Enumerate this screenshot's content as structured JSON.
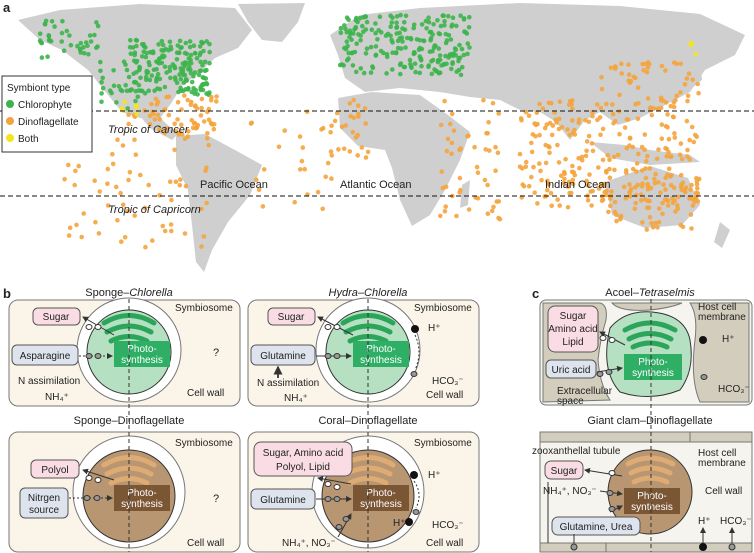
{
  "panel_labels": {
    "a": "a",
    "b": "b",
    "c": "c"
  },
  "map": {
    "legend_title": "Symbiont type",
    "legend": [
      {
        "label": "Chlorophyte",
        "color": "#3cb44b"
      },
      {
        "label": "Dinoflagellate",
        "color": "#f4a43c"
      },
      {
        "label": "Both",
        "color": "#f2e51c"
      }
    ],
    "tropic_cancer": "Tropic of Cancer",
    "tropic_capricorn": "Tropic of Capricorn",
    "oceans": [
      "Pacific Ocean",
      "Atlantic Ocean",
      "Indian Ocean"
    ],
    "land_color": "#cfcfcf"
  },
  "b": {
    "p1": {
      "title": "Sponge–",
      "title_it": "Chlorella",
      "symbiosome": "Symbiosome",
      "cell_wall": "Cell wall",
      "export": "Sugar",
      "import": "Asparagine",
      "photo1": "Photo-",
      "photo2": "synthesis",
      "n_assim": "N assimilation",
      "nh4": "NH₄⁺",
      "unknown": "?"
    },
    "p2": {
      "title_it": "Hydra",
      "title": "–",
      "title_it2": "Chlorella",
      "symbiosome": "Symbiosome",
      "cell_wall": "Cell wall",
      "export": "Sugar",
      "import": "Glutamine",
      "photo1": "Photo-",
      "photo2": "synthesis",
      "n_assim": "N assimilation",
      "nh4": "NH₄⁺",
      "h": "H⁺",
      "hco3": "HCO₃⁻"
    },
    "p3": {
      "title": "Sponge–Dinoflagellate",
      "symbiosome": "Symbiosome",
      "cell_wall": "Cell wall",
      "export": "Polyol",
      "import1": "Nitrgen",
      "import2": "source",
      "photo1": "Photo-",
      "photo2": "synthesis",
      "unknown": "?"
    },
    "p4": {
      "title": "Coral–Dinoflagellate",
      "symbiosome": "Symbiosome",
      "cell_wall": "Cell wall",
      "export1": "Sugar, Amino acid",
      "export2": "Polyol, Lipid",
      "import": "Glutamine",
      "photo1": "Photo-",
      "photo2": "synthesis",
      "h": "H⁺",
      "h_in": "H⁺",
      "hco3": "HCO₃⁻",
      "nitrogen": "NH₄⁺, NO₃⁻"
    }
  },
  "c": {
    "p1": {
      "title": "Acoel–",
      "title_it": "Tetraselmis",
      "export1": "Sugar",
      "export2": "Amino acid",
      "export3": "Lipid",
      "import": "Uric acid",
      "photo1": "Photo-",
      "photo2": "synthesis",
      "host1": "Host cell",
      "host2": "membrane",
      "h": "H⁺",
      "hco3": "HCO₃⁻",
      "extra1": "Extracellular",
      "extra2": "space"
    },
    "p2": {
      "title": "Giant clam–Dinoflagellate",
      "tubule": "zooxanthellal tubule",
      "export": "Sugar",
      "nitrogen": "NH₄⁺, NO₃⁻",
      "import": "Glutamine, Urea",
      "photo1": "Photo-",
      "photo2": "synthesis",
      "host1": "Host cell",
      "host2": "membrane",
      "cell_wall": "Cell wall",
      "h": "H⁺",
      "hco3": "HCO₃⁻"
    }
  },
  "colors": {
    "chlorophyte_cell": "#b5e0c2",
    "chloro_thylakoid": "#2aa55a",
    "dino_cell": "#b89672",
    "dino_thylakoid": "#dfab74",
    "photo_green": "#2fae66",
    "photo_brown": "#7a5634",
    "export_box": "#fadde4",
    "import_box": "#dde4ed",
    "panel_bg": "#fbf5e9",
    "host_tissue": "#d3cdbd"
  }
}
